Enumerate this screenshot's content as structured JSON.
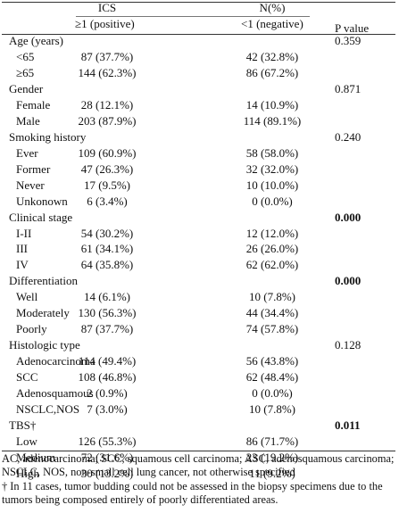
{
  "header": {
    "group_title": "ICS",
    "unit": "N(%)",
    "col_positive": "≥1  (positive)",
    "col_negative": "<1 (negative)",
    "col_p": "P value"
  },
  "groups": [
    {
      "label": "Age (years)",
      "p_value": "0.359",
      "items": [
        [
          "<65",
          "87 (37.7%)",
          "42 (32.8%)"
        ],
        [
          "≥65",
          "144 (62.3%)",
          "86 (67.2%)"
        ]
      ]
    },
    {
      "label": "Gender",
      "p_value": "0.871",
      "items": [
        [
          "Female",
          "28 (12.1%)",
          "14 (10.9%)"
        ],
        [
          "Male",
          "203 (87.9%)",
          "114 (89.1%)"
        ]
      ]
    },
    {
      "label": "Smoking history",
      "p_value": "0.240",
      "items": [
        [
          "Ever",
          "109 (60.9%)",
          "58 (58.0%)"
        ],
        [
          "Former",
          "47 (26.3%)",
          "32 (32.0%)"
        ],
        [
          "Never",
          "17 (9.5%)",
          "10 (10.0%)"
        ],
        [
          "Unkonown",
          "6 (3.4%)",
          "0 (0.0%)"
        ]
      ]
    },
    {
      "label": "Clinical stage",
      "p_value": "0.000",
      "p_bold": true,
      "items": [
        [
          "I-II",
          "54 (30.2%)",
          "12 (12.0%)"
        ],
        [
          "III",
          "61 (34.1%)",
          "26 (26.0%)"
        ],
        [
          "IV",
          "64 (35.8%)",
          "62 (62.0%)"
        ]
      ]
    },
    {
      "label": "Differentiation",
      "p_value": "0.000",
      "p_bold": true,
      "items": [
        [
          "Well",
          "14 (6.1%)",
          "10 (7.8%)"
        ],
        [
          "Moderately",
          "130 (56.3%)",
          "44 (34.4%)"
        ],
        [
          "Poorly",
          "87 (37.7%)",
          "74 (57.8%)"
        ]
      ]
    },
    {
      "label": "Histologic type",
      "p_value": "0.128",
      "items": [
        [
          "Adenocarcinoma",
          "114 (49.4%)",
          "56 (43.8%)"
        ],
        [
          "SCC",
          "108 (46.8%)",
          "62 (48.4%)"
        ],
        [
          "Adenosquamous",
          "2 (0.9%)",
          "0 (0.0%)"
        ],
        [
          "NSCLC,NOS",
          "7 (3.0%)",
          "10 (7.8%)"
        ]
      ]
    },
    {
      "label": "TBS†",
      "p_value": "0.011",
      "p_bold": true,
      "items": [
        [
          "Low",
          "126 (55.3%)",
          "86 (71.7%)"
        ],
        [
          "Medium",
          "72 (31.6%)",
          "23 (19.2%)"
        ],
        [
          "High",
          "30 (13.2%)",
          "11 (9.2%)"
        ]
      ]
    }
  ],
  "footnotes": [
    "AC, adenocarcinoma; SCC, squamous cell carcinoma; ASC, adenosquamous carcinoma; NSCLC, NOS, non-small cell lung cancer, not otherwise specified",
    "† In 11 cases, tumor budding could not be assessed in the biopsy specimens due to the tumors being composed entirely of poorly differentiated areas."
  ]
}
